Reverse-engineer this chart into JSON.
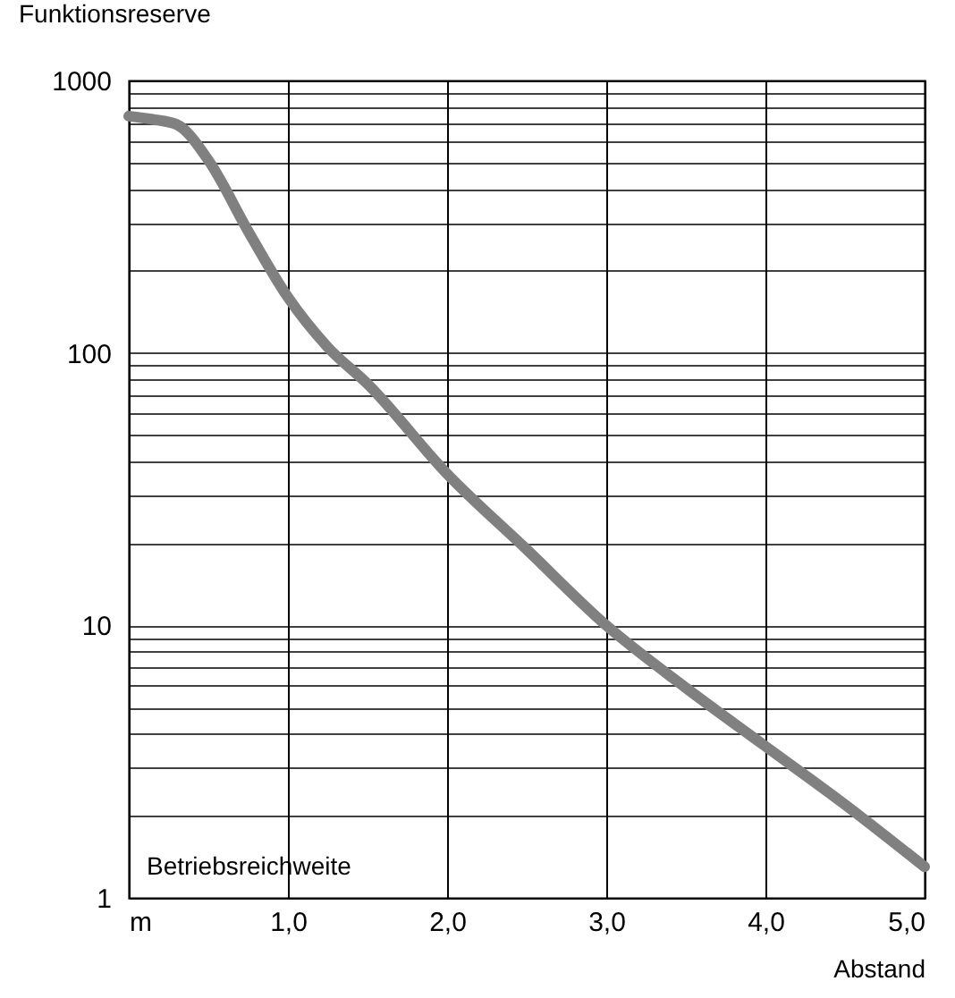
{
  "chart_data": {
    "type": "line",
    "ylabel": "Funktionsreserve",
    "xlabel": "Abstand",
    "annotations": [
      "Betriebsreichweite"
    ],
    "x": [
      0,
      0.15,
      0.3,
      0.5,
      0.75,
      1.0,
      1.25,
      1.5,
      2.0,
      2.5,
      3.0,
      3.5,
      4.0,
      4.5,
      5.0
    ],
    "series": [
      {
        "color": "#808080",
        "values": [
          740,
          720,
          690,
          510,
          280,
          160,
          105,
          77,
          36,
          19,
          10,
          5.9,
          3.6,
          2.2,
          1.3
        ]
      }
    ],
    "log": true,
    "xlim": [
      0,
      5
    ],
    "ylim": [
      1,
      1000
    ],
    "xticks": [
      {
        "value": 0,
        "label": "m"
      },
      {
        "value": 1,
        "label": "1,0"
      },
      {
        "value": 2,
        "label": "2,0"
      },
      {
        "value": 3,
        "label": "3,0"
      },
      {
        "value": 4,
        "label": "4,0"
      },
      {
        "value": 5,
        "label": "5,0"
      }
    ],
    "yticks": [
      1,
      {
        "value": 2,
        "label": null
      },
      {
        "value": 3,
        "label": null
      },
      {
        "value": 4,
        "label": null
      },
      {
        "value": 5,
        "label": null
      },
      {
        "value": 6,
        "label": null
      },
      {
        "value": 7,
        "label": null
      },
      {
        "value": 8,
        "label": null
      },
      {
        "value": 9,
        "label": null
      },
      10,
      {
        "value": 20,
        "label": null
      },
      {
        "value": 30,
        "label": null
      },
      {
        "value": 40,
        "label": null
      },
      {
        "value": 50,
        "label": null
      },
      {
        "value": 60,
        "label": null
      },
      {
        "value": 70,
        "label": null
      },
      {
        "value": 80,
        "label": null
      },
      {
        "value": 90,
        "label": null
      },
      100,
      {
        "value": 200,
        "label": null
      },
      {
        "value": 300,
        "label": null
      },
      {
        "value": 400,
        "label": null
      },
      {
        "value": 500,
        "label": null
      },
      {
        "value": 600,
        "label": null
      },
      {
        "value": 700,
        "label": null
      },
      {
        "value": 800,
        "label": null
      },
      {
        "value": 900,
        "label": null
      },
      1000
    ],
    "grid": true,
    "line_style": "solid",
    "marker": "none",
    "legend": false
  }
}
